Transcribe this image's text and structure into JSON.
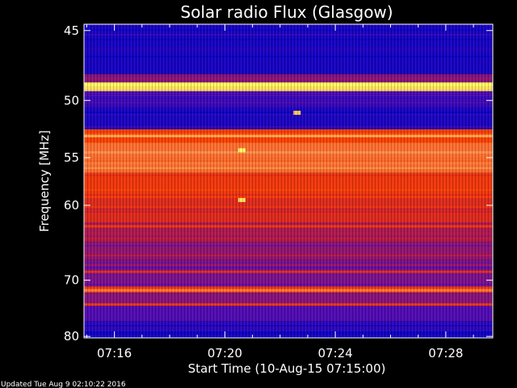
{
  "chart_data": {
    "type": "heatmap",
    "title": "Solar radio Flux (Glasgow)",
    "xlabel": "Start Time (10-Aug-15 07:15:00)",
    "ylabel": "Frequency [MHz]",
    "x_ticks": [
      "07:16",
      "07:20",
      "07:24",
      "07:28"
    ],
    "x_tick_minutes": [
      1,
      5,
      9,
      13
    ],
    "x_range_minutes": [
      -0.1,
      14.7
    ],
    "y_ticks": [
      "45",
      "50",
      "55",
      "60",
      "70",
      "80"
    ],
    "y_tick_values": [
      45,
      50,
      55,
      60,
      70,
      80
    ],
    "y_range_mhz": [
      44.6,
      80.3
    ],
    "y_scale": "reciprocal",
    "colormap": [
      "#0000c8",
      "#5a0cb0",
      "#c81c30",
      "#ff4000",
      "#ff9050",
      "#ffff60"
    ],
    "intensity_bands": [
      {
        "from_mhz": 44.6,
        "to_mhz": 48.0,
        "level": 0.05
      },
      {
        "from_mhz": 48.0,
        "to_mhz": 48.6,
        "level": 0.3
      },
      {
        "from_mhz": 48.6,
        "to_mhz": 49.2,
        "level": 0.95
      },
      {
        "from_mhz": 49.2,
        "to_mhz": 50.6,
        "level": 0.12
      },
      {
        "from_mhz": 50.6,
        "to_mhz": 52.4,
        "level": 0.06
      },
      {
        "from_mhz": 52.4,
        "to_mhz": 53.6,
        "level": 0.6
      },
      {
        "from_mhz": 53.6,
        "to_mhz": 56.5,
        "level": 0.72
      },
      {
        "from_mhz": 56.5,
        "to_mhz": 59.0,
        "level": 0.55
      },
      {
        "from_mhz": 59.0,
        "to_mhz": 62.0,
        "level": 0.48
      },
      {
        "from_mhz": 62.0,
        "to_mhz": 64.5,
        "level": 0.36
      },
      {
        "from_mhz": 64.5,
        "to_mhz": 67.0,
        "level": 0.3
      },
      {
        "from_mhz": 67.0,
        "to_mhz": 71.0,
        "level": 0.26
      },
      {
        "from_mhz": 71.0,
        "to_mhz": 72.0,
        "level": 0.55
      },
      {
        "from_mhz": 72.0,
        "to_mhz": 74.0,
        "level": 0.28
      },
      {
        "from_mhz": 74.0,
        "to_mhz": 77.0,
        "level": 0.18
      },
      {
        "from_mhz": 77.0,
        "to_mhz": 79.0,
        "level": 0.1
      },
      {
        "from_mhz": 79.0,
        "to_mhz": 80.3,
        "level": 0.02
      }
    ],
    "bright_lines": [
      {
        "mhz": 48.8,
        "level": 1.0
      },
      {
        "mhz": 53.0,
        "level": 0.85
      },
      {
        "mhz": 54.5,
        "level": 0.8
      },
      {
        "mhz": 62.5,
        "level": 0.55
      },
      {
        "mhz": 68.7,
        "level": 0.5
      },
      {
        "mhz": 71.6,
        "level": 0.75
      },
      {
        "mhz": 74.0,
        "level": 0.55
      }
    ],
    "burst_spots": [
      {
        "minute": 5.6,
        "mhz": 54.3,
        "level": 1.0
      },
      {
        "minute": 5.6,
        "mhz": 59.4,
        "level": 0.95
      },
      {
        "minute": 7.6,
        "mhz": 51.0,
        "level": 0.9
      }
    ]
  },
  "footer": {
    "updated_text": "Updated Tue Aug  9 02:10:22 2016"
  }
}
